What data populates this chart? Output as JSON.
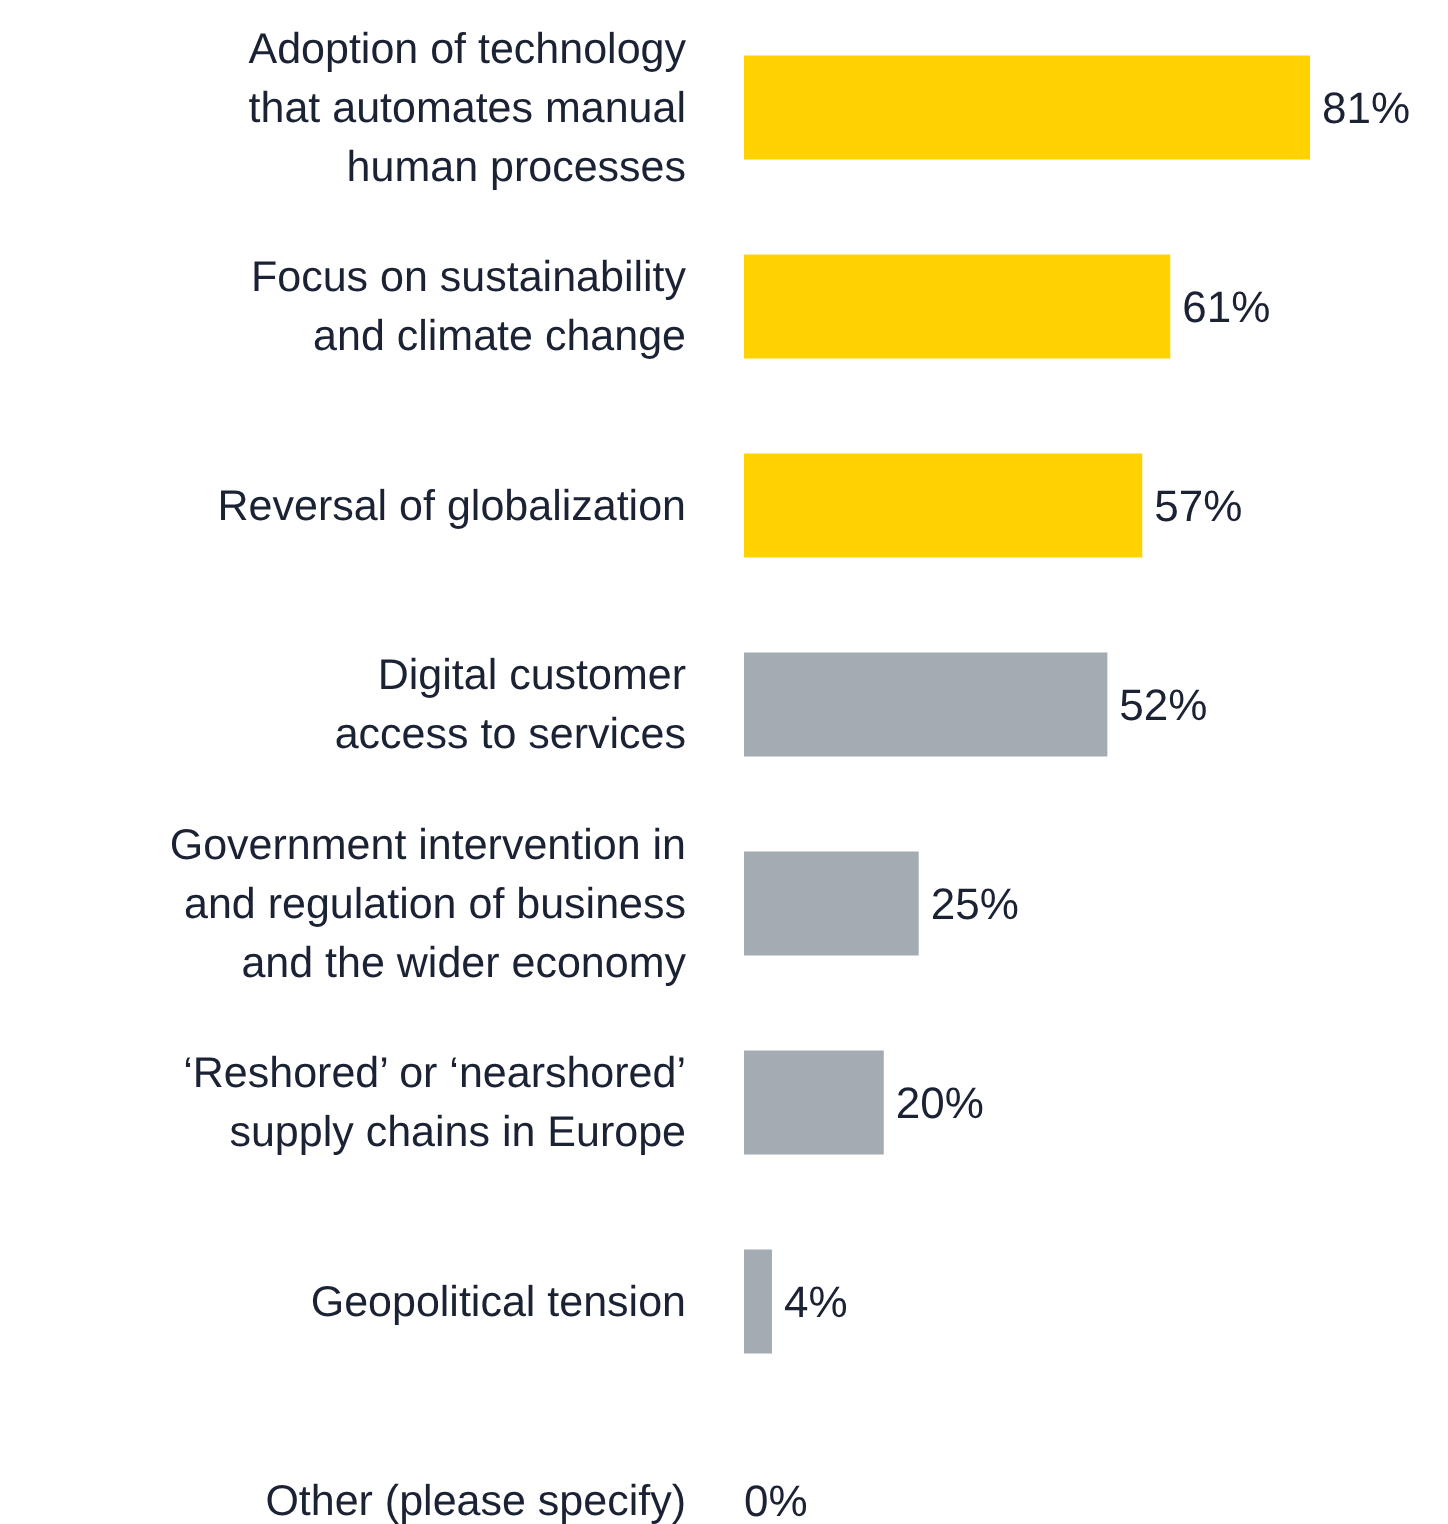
{
  "chart_data": {
    "type": "bar",
    "orientation": "horizontal",
    "categories": [
      "Adoption of technology that automates manual human processes",
      "Focus on sustainability and climate change",
      "Reversal of globalization",
      "Digital customer access to services",
      "Government intervention in and regulation of business and the wider economy",
      "‘Reshored’ or ‘nearshored’ supply chains in Europe",
      "Geopolitical tension",
      "Other (please specify)"
    ],
    "values": [
      81,
      61,
      57,
      52,
      25,
      20,
      4,
      0
    ],
    "colors": [
      "#ffd200",
      "#ffd200",
      "#ffd200",
      "#a5abb2",
      "#a5abb2",
      "#a5abb2",
      "#a5abb2",
      "#a5abb2"
    ],
    "value_labels": [
      "81%",
      "61%",
      "57%",
      "52%",
      "25%",
      "20%",
      "4%",
      "0%"
    ]
  }
}
